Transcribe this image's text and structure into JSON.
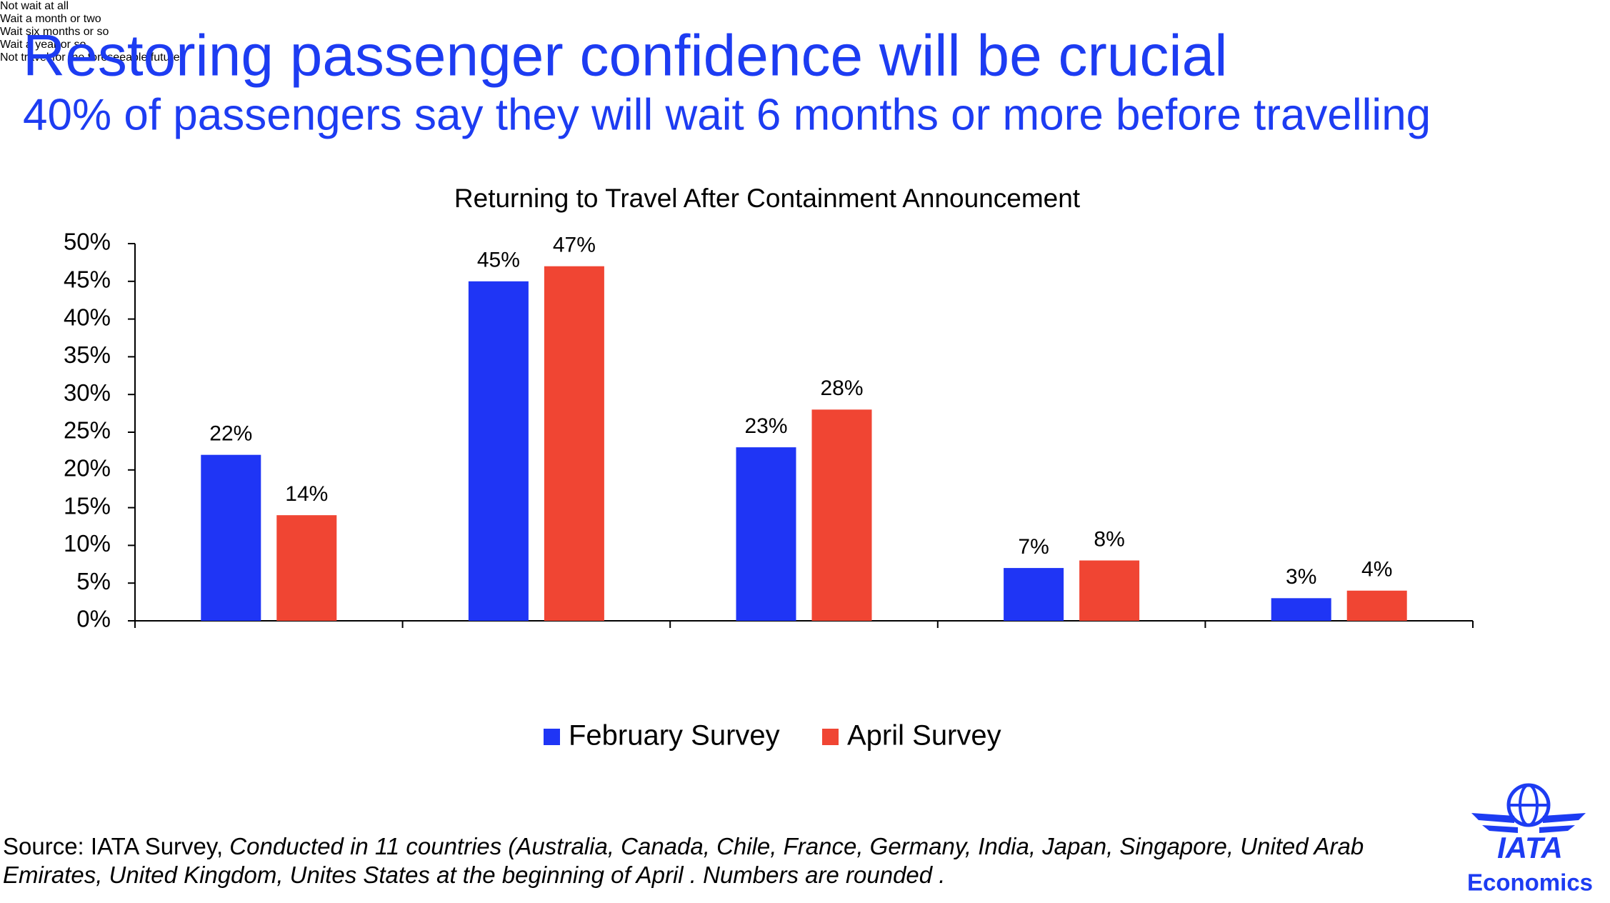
{
  "header": {
    "title": "Restoring passenger confidence will be crucial",
    "subtitle": "40% of passengers say they will wait 6 months or more before travelling"
  },
  "chart_data": {
    "type": "bar",
    "title": "Returning to Travel After Containment Announcement",
    "categories": [
      "Not wait at all",
      "Wait a month or two",
      "Wait six months or so",
      "Wait a year or so",
      "Not travel for the foreseeable future"
    ],
    "series": [
      {
        "name": "February Survey",
        "color": "#1f35f5",
        "values": [
          22,
          45,
          23,
          7,
          3
        ],
        "value_labels": [
          "22%",
          "45%",
          "23%",
          "7%",
          "3%"
        ]
      },
      {
        "name": "April Survey",
        "color": "#f04533",
        "values": [
          14,
          47,
          28,
          8,
          4
        ],
        "value_labels": [
          "14%",
          "47%",
          "28%",
          "8%",
          "4%"
        ]
      }
    ],
    "ylim": [
      0,
      50
    ],
    "yticks": [
      {
        "value": 0,
        "label": "0%"
      },
      {
        "value": 5,
        "label": "5%"
      },
      {
        "value": 10,
        "label": "10%"
      },
      {
        "value": 15,
        "label": "15%"
      },
      {
        "value": 20,
        "label": "20%"
      },
      {
        "value": 25,
        "label": "25%"
      },
      {
        "value": 30,
        "label": "30%"
      },
      {
        "value": 35,
        "label": "35%"
      },
      {
        "value": 40,
        "label": "40%"
      },
      {
        "value": 45,
        "label": "45%"
      },
      {
        "value": 50,
        "label": "50%"
      }
    ],
    "legend": "bottom"
  },
  "source": {
    "label": "Source: IATA Survey,",
    "lines": [
      "Conducted in 11 countries (Australia, Canada, Chile, France, Germany, India, Japan, Singapore, United Arab",
      "Emirates, United Kingdom, Unites States at the beginning of April . Numbers are rounded ."
    ]
  },
  "logo": {
    "name": "IATA",
    "unit": "Economics"
  }
}
